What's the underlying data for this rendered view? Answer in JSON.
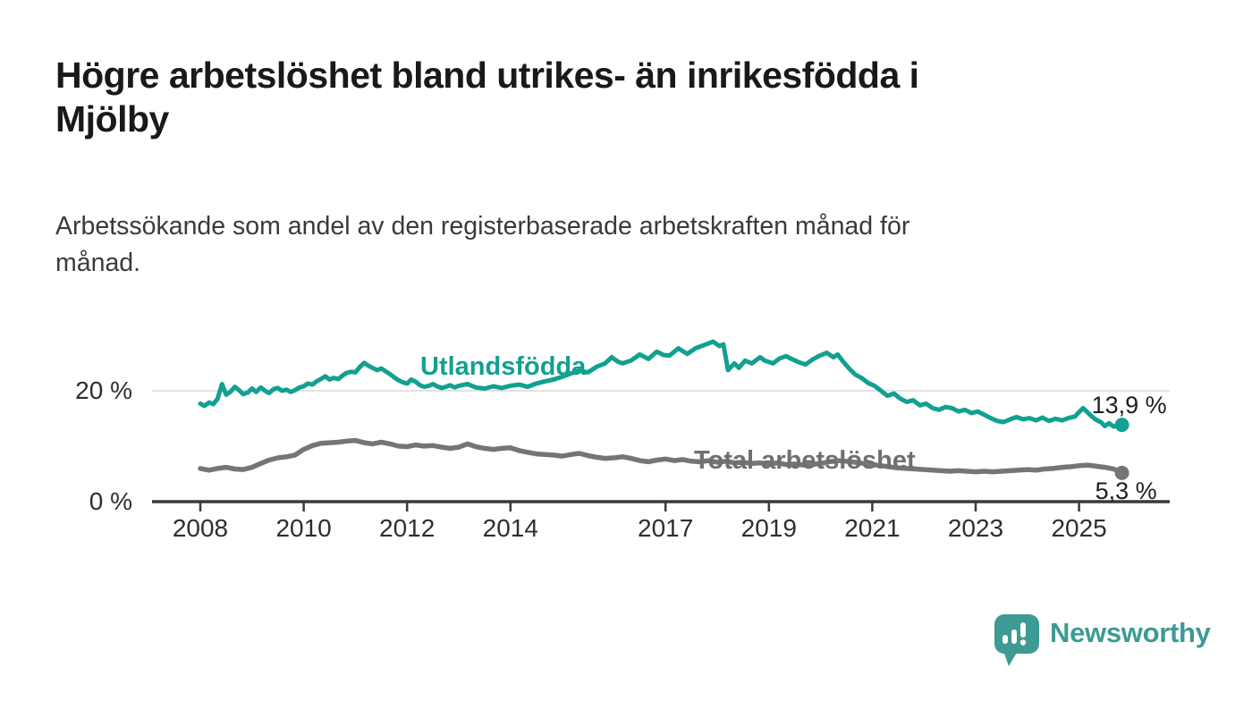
{
  "title": {
    "lines": [
      "Högre arbetslöshet bland utrikes- än inrikesfödda i",
      "Mjölby"
    ]
  },
  "subtitle": {
    "lines": [
      "Arbetssökande som andel av den registerbaserade arbetskraften månad för",
      "månad."
    ]
  },
  "branding": {
    "logo_text": "Newsworthy",
    "logo_color": "#3d9b93",
    "logo_icon": "speech-bubble-bar-chart-exclamation"
  },
  "chart_data": {
    "type": "line",
    "unit": "%",
    "grid": "single horizontal gridline at 20 %",
    "legend_position": "inline labels on lines",
    "x_axis": {
      "ticks": [
        2008,
        2010,
        2012,
        2014,
        2017,
        2019,
        2021,
        2023,
        2025
      ],
      "range": [
        2008,
        2025.83
      ]
    },
    "y_axis": {
      "ticks": [
        {
          "value": 0,
          "label": "0 %"
        },
        {
          "value": 20,
          "label": "20 %"
        }
      ],
      "range": [
        0,
        30
      ]
    },
    "series": [
      {
        "name": "Utlandsfödda",
        "color": "#12a091",
        "end_label": "13,9 %",
        "end_value": 13.9,
        "points": [
          [
            2008.0,
            17.7
          ],
          [
            2008.08,
            17.3
          ],
          [
            2008.17,
            17.9
          ],
          [
            2008.25,
            17.6
          ],
          [
            2008.33,
            18.5
          ],
          [
            2008.42,
            21.2
          ],
          [
            2008.5,
            19.3
          ],
          [
            2008.58,
            19.8
          ],
          [
            2008.67,
            20.7
          ],
          [
            2008.75,
            20.1
          ],
          [
            2008.83,
            19.4
          ],
          [
            2008.92,
            19.7
          ],
          [
            2009.0,
            20.4
          ],
          [
            2009.08,
            19.8
          ],
          [
            2009.17,
            20.6
          ],
          [
            2009.25,
            20.0
          ],
          [
            2009.33,
            19.6
          ],
          [
            2009.42,
            20.3
          ],
          [
            2009.5,
            20.5
          ],
          [
            2009.58,
            20.0
          ],
          [
            2009.67,
            20.2
          ],
          [
            2009.75,
            19.8
          ],
          [
            2009.83,
            20.1
          ],
          [
            2009.92,
            20.6
          ],
          [
            2010.0,
            20.8
          ],
          [
            2010.08,
            21.3
          ],
          [
            2010.17,
            21.1
          ],
          [
            2010.25,
            21.7
          ],
          [
            2010.33,
            22.1
          ],
          [
            2010.42,
            22.6
          ],
          [
            2010.5,
            22.0
          ],
          [
            2010.58,
            22.3
          ],
          [
            2010.67,
            22.1
          ],
          [
            2010.75,
            22.7
          ],
          [
            2010.83,
            23.2
          ],
          [
            2010.92,
            23.4
          ],
          [
            2011.0,
            23.3
          ],
          [
            2011.08,
            24.2
          ],
          [
            2011.17,
            25.0
          ],
          [
            2011.25,
            24.5
          ],
          [
            2011.33,
            24.1
          ],
          [
            2011.42,
            23.7
          ],
          [
            2011.5,
            24.0
          ],
          [
            2011.58,
            23.5
          ],
          [
            2011.67,
            23.0
          ],
          [
            2011.75,
            22.4
          ],
          [
            2011.83,
            21.9
          ],
          [
            2011.92,
            21.5
          ],
          [
            2012.0,
            21.3
          ],
          [
            2012.08,
            22.0
          ],
          [
            2012.17,
            21.6
          ],
          [
            2012.25,
            21.0
          ],
          [
            2012.33,
            20.7
          ],
          [
            2012.42,
            20.9
          ],
          [
            2012.5,
            21.2
          ],
          [
            2012.58,
            20.8
          ],
          [
            2012.67,
            20.5
          ],
          [
            2012.75,
            20.7
          ],
          [
            2012.83,
            21.0
          ],
          [
            2012.92,
            20.6
          ],
          [
            2013.0,
            20.9
          ],
          [
            2013.17,
            21.2
          ],
          [
            2013.33,
            20.6
          ],
          [
            2013.5,
            20.4
          ],
          [
            2013.67,
            20.8
          ],
          [
            2013.83,
            20.5
          ],
          [
            2014.0,
            20.9
          ],
          [
            2014.17,
            21.1
          ],
          [
            2014.33,
            20.7
          ],
          [
            2014.5,
            21.3
          ],
          [
            2014.67,
            21.7
          ],
          [
            2014.83,
            22.0
          ],
          [
            2015.0,
            22.5
          ],
          [
            2015.17,
            23.1
          ],
          [
            2015.33,
            23.6
          ],
          [
            2015.5,
            23.3
          ],
          [
            2015.67,
            24.3
          ],
          [
            2015.83,
            24.9
          ],
          [
            2015.96,
            26.0
          ],
          [
            2016.08,
            25.2
          ],
          [
            2016.17,
            24.9
          ],
          [
            2016.33,
            25.4
          ],
          [
            2016.5,
            26.5
          ],
          [
            2016.67,
            25.7
          ],
          [
            2016.83,
            27.0
          ],
          [
            2016.96,
            26.4
          ],
          [
            2017.08,
            26.3
          ],
          [
            2017.25,
            27.6
          ],
          [
            2017.42,
            26.6
          ],
          [
            2017.58,
            27.6
          ],
          [
            2017.75,
            28.2
          ],
          [
            2017.92,
            28.8
          ],
          [
            2018.04,
            28.0
          ],
          [
            2018.12,
            28.3
          ],
          [
            2018.21,
            23.7
          ],
          [
            2018.33,
            24.9
          ],
          [
            2018.42,
            24.1
          ],
          [
            2018.54,
            25.4
          ],
          [
            2018.67,
            24.9
          ],
          [
            2018.83,
            26.0
          ],
          [
            2018.92,
            25.4
          ],
          [
            2019.08,
            24.9
          ],
          [
            2019.21,
            25.8
          ],
          [
            2019.33,
            26.2
          ],
          [
            2019.46,
            25.6
          ],
          [
            2019.58,
            25.1
          ],
          [
            2019.71,
            24.7
          ],
          [
            2019.83,
            25.5
          ],
          [
            2019.96,
            26.2
          ],
          [
            2020.12,
            26.8
          ],
          [
            2020.25,
            26.0
          ],
          [
            2020.33,
            26.5
          ],
          [
            2020.42,
            25.4
          ],
          [
            2020.54,
            24.1
          ],
          [
            2020.67,
            22.9
          ],
          [
            2020.79,
            22.3
          ],
          [
            2020.92,
            21.4
          ],
          [
            2021.04,
            20.9
          ],
          [
            2021.17,
            20.0
          ],
          [
            2021.29,
            19.1
          ],
          [
            2021.42,
            19.5
          ],
          [
            2021.54,
            18.6
          ],
          [
            2021.67,
            18.0
          ],
          [
            2021.79,
            18.3
          ],
          [
            2021.92,
            17.4
          ],
          [
            2022.04,
            17.7
          ],
          [
            2022.17,
            16.9
          ],
          [
            2022.29,
            16.6
          ],
          [
            2022.42,
            17.1
          ],
          [
            2022.54,
            16.9
          ],
          [
            2022.67,
            16.3
          ],
          [
            2022.79,
            16.6
          ],
          [
            2022.92,
            16.0
          ],
          [
            2023.04,
            16.3
          ],
          [
            2023.17,
            15.7
          ],
          [
            2023.29,
            15.1
          ],
          [
            2023.42,
            14.6
          ],
          [
            2023.54,
            14.4
          ],
          [
            2023.67,
            14.9
          ],
          [
            2023.79,
            15.3
          ],
          [
            2023.92,
            14.9
          ],
          [
            2024.04,
            15.1
          ],
          [
            2024.17,
            14.7
          ],
          [
            2024.29,
            15.2
          ],
          [
            2024.42,
            14.6
          ],
          [
            2024.54,
            15.0
          ],
          [
            2024.67,
            14.7
          ],
          [
            2024.79,
            15.1
          ],
          [
            2024.92,
            15.4
          ],
          [
            2025.0,
            16.2
          ],
          [
            2025.08,
            16.9
          ],
          [
            2025.17,
            16.1
          ],
          [
            2025.25,
            15.4
          ],
          [
            2025.33,
            14.8
          ],
          [
            2025.42,
            14.4
          ],
          [
            2025.5,
            13.7
          ],
          [
            2025.58,
            14.2
          ],
          [
            2025.67,
            13.6
          ],
          [
            2025.75,
            13.7
          ],
          [
            2025.83,
            13.9
          ]
        ]
      },
      {
        "name": "Total arbetslöshet",
        "color": "#757575",
        "end_label": "5,3 %",
        "end_value": 5.3,
        "points": [
          [
            2008.0,
            6.1
          ],
          [
            2008.17,
            5.8
          ],
          [
            2008.33,
            6.1
          ],
          [
            2008.5,
            6.3
          ],
          [
            2008.67,
            6.0
          ],
          [
            2008.83,
            5.9
          ],
          [
            2009.0,
            6.3
          ],
          [
            2009.17,
            7.0
          ],
          [
            2009.33,
            7.6
          ],
          [
            2009.5,
            8.0
          ],
          [
            2009.67,
            8.2
          ],
          [
            2009.83,
            8.5
          ],
          [
            2010.0,
            9.5
          ],
          [
            2010.17,
            10.2
          ],
          [
            2010.33,
            10.6
          ],
          [
            2010.5,
            10.7
          ],
          [
            2010.67,
            10.8
          ],
          [
            2010.83,
            11.0
          ],
          [
            2011.0,
            11.1
          ],
          [
            2011.17,
            10.7
          ],
          [
            2011.33,
            10.5
          ],
          [
            2011.5,
            10.8
          ],
          [
            2011.67,
            10.5
          ],
          [
            2011.83,
            10.1
          ],
          [
            2012.0,
            10.0
          ],
          [
            2012.17,
            10.3
          ],
          [
            2012.33,
            10.1
          ],
          [
            2012.5,
            10.2
          ],
          [
            2012.67,
            9.9
          ],
          [
            2012.83,
            9.7
          ],
          [
            2013.0,
            9.9
          ],
          [
            2013.17,
            10.5
          ],
          [
            2013.33,
            10.0
          ],
          [
            2013.5,
            9.7
          ],
          [
            2013.67,
            9.5
          ],
          [
            2013.83,
            9.7
          ],
          [
            2014.0,
            9.8
          ],
          [
            2014.17,
            9.3
          ],
          [
            2014.33,
            9.0
          ],
          [
            2014.5,
            8.7
          ],
          [
            2014.67,
            8.6
          ],
          [
            2014.83,
            8.5
          ],
          [
            2015.0,
            8.3
          ],
          [
            2015.17,
            8.6
          ],
          [
            2015.33,
            8.8
          ],
          [
            2015.5,
            8.4
          ],
          [
            2015.67,
            8.1
          ],
          [
            2015.83,
            7.9
          ],
          [
            2016.0,
            8.0
          ],
          [
            2016.17,
            8.2
          ],
          [
            2016.33,
            7.9
          ],
          [
            2016.5,
            7.5
          ],
          [
            2016.67,
            7.3
          ],
          [
            2016.83,
            7.6
          ],
          [
            2017.0,
            7.8
          ],
          [
            2017.17,
            7.5
          ],
          [
            2017.33,
            7.7
          ],
          [
            2017.5,
            7.4
          ],
          [
            2017.67,
            7.3
          ],
          [
            2017.83,
            7.5
          ],
          [
            2018.0,
            7.2
          ],
          [
            2018.17,
            7.4
          ],
          [
            2018.33,
            7.1
          ],
          [
            2018.5,
            7.2
          ],
          [
            2018.67,
            7.0
          ],
          [
            2018.83,
            7.1
          ],
          [
            2019.0,
            6.9
          ],
          [
            2019.17,
            7.1
          ],
          [
            2019.33,
            6.8
          ],
          [
            2019.5,
            6.9
          ],
          [
            2019.67,
            6.7
          ],
          [
            2019.83,
            6.8
          ],
          [
            2020.0,
            7.0
          ],
          [
            2020.17,
            7.3
          ],
          [
            2020.33,
            7.5
          ],
          [
            2020.5,
            7.4
          ],
          [
            2020.67,
            7.2
          ],
          [
            2020.83,
            7.0
          ],
          [
            2021.0,
            6.8
          ],
          [
            2021.17,
            6.6
          ],
          [
            2021.33,
            6.4
          ],
          [
            2021.5,
            6.2
          ],
          [
            2021.67,
            6.1
          ],
          [
            2021.83,
            6.0
          ],
          [
            2022.0,
            5.9
          ],
          [
            2022.17,
            5.8
          ],
          [
            2022.33,
            5.7
          ],
          [
            2022.5,
            5.6
          ],
          [
            2022.67,
            5.7
          ],
          [
            2022.83,
            5.6
          ],
          [
            2023.0,
            5.5
          ],
          [
            2023.17,
            5.6
          ],
          [
            2023.33,
            5.5
          ],
          [
            2023.5,
            5.6
          ],
          [
            2023.67,
            5.7
          ],
          [
            2023.83,
            5.8
          ],
          [
            2024.0,
            5.9
          ],
          [
            2024.17,
            5.8
          ],
          [
            2024.33,
            6.0
          ],
          [
            2024.5,
            6.1
          ],
          [
            2024.67,
            6.3
          ],
          [
            2024.83,
            6.4
          ],
          [
            2025.0,
            6.6
          ],
          [
            2025.17,
            6.7
          ],
          [
            2025.33,
            6.5
          ],
          [
            2025.5,
            6.3
          ],
          [
            2025.67,
            6.0
          ],
          [
            2025.75,
            5.7
          ],
          [
            2025.83,
            5.3
          ]
        ]
      }
    ]
  }
}
